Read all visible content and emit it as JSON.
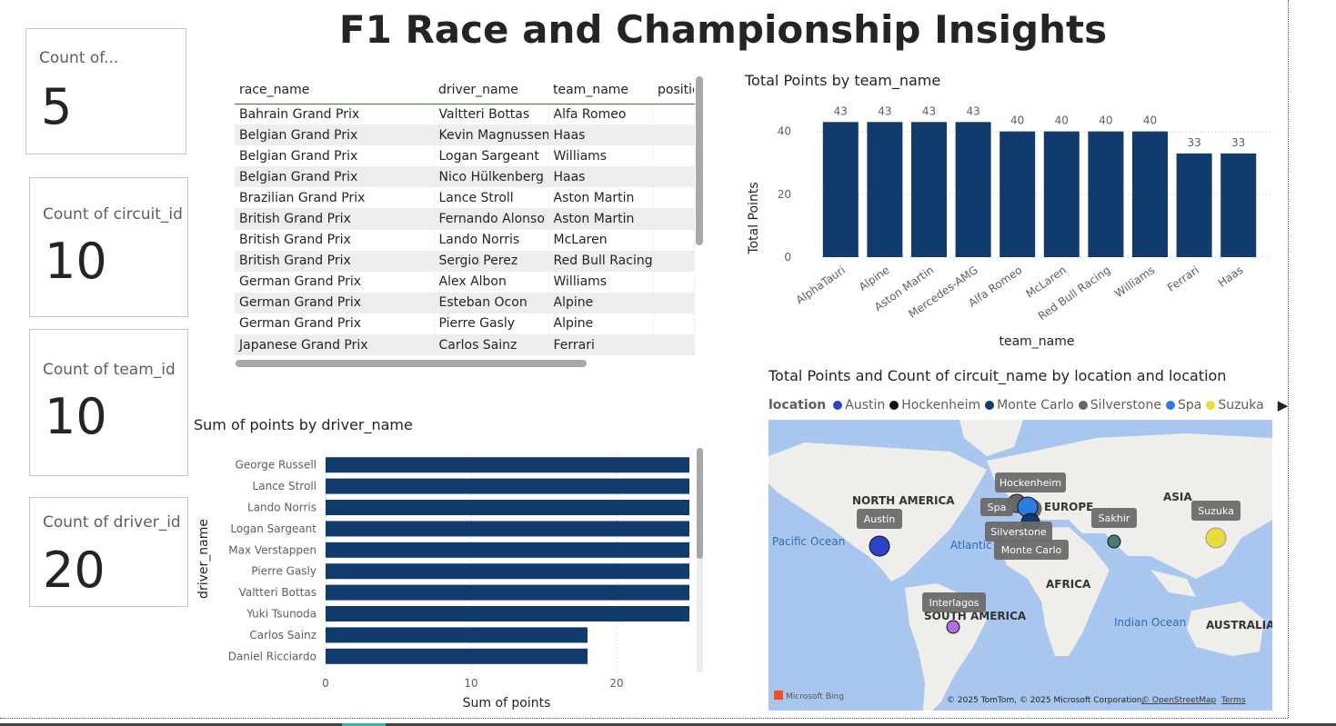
{
  "header": {
    "title": "F1 Race and Championship Insights"
  },
  "cards": [
    {
      "label": "Count of...",
      "value": "5"
    },
    {
      "label": "Count of circuit_id",
      "value": "10"
    },
    {
      "label": "Count of team_id",
      "value": "10"
    },
    {
      "label": "Count of driver_id",
      "value": "20"
    }
  ],
  "table": {
    "columns": [
      "race_name",
      "driver_name",
      "team_name",
      "positic"
    ],
    "rows": [
      [
        "Bahrain Grand Prix",
        "Valtteri Bottas",
        "Alfa Romeo"
      ],
      [
        "Belgian Grand Prix",
        "Kevin Magnussen",
        "Haas"
      ],
      [
        "Belgian Grand Prix",
        "Logan Sargeant",
        "Williams"
      ],
      [
        "Belgian Grand Prix",
        "Nico Hülkenberg",
        "Haas"
      ],
      [
        "Brazilian Grand Prix",
        "Lance Stroll",
        "Aston Martin"
      ],
      [
        "British Grand Prix",
        "Fernando Alonso",
        "Aston Martin"
      ],
      [
        "British Grand Prix",
        "Lando Norris",
        "McLaren"
      ],
      [
        "British Grand Prix",
        "Sergio Perez",
        "Red Bull Racing"
      ],
      [
        "German Grand Prix",
        "Alex Albon",
        "Williams"
      ],
      [
        "German Grand Prix",
        "Esteban Ocon",
        "Alpine"
      ],
      [
        "German Grand Prix",
        "Pierre Gasly",
        "Alpine"
      ],
      [
        "Japanese Grand Prix",
        "Carlos Sainz",
        "Ferrari"
      ]
    ]
  },
  "team_chart": {
    "title": "Total Points by team_name",
    "xlabel": "team_name",
    "ylabel": "Total Points"
  },
  "driver_chart": {
    "title": "Sum of points by driver_name",
    "xlabel": "Sum of points",
    "ylabel": "driver_name"
  },
  "map": {
    "title": "Total Points and Count of circuit_name by location and location",
    "legend_title": "location",
    "legend": [
      {
        "name": "Austin",
        "color": "#2d44c8"
      },
      {
        "name": "Hockenheim",
        "color": "#111111"
      },
      {
        "name": "Monte Carlo",
        "color": "#123a6b"
      },
      {
        "name": "Silverstone",
        "color": "#666666"
      },
      {
        "name": "Spa",
        "color": "#2f7be5"
      },
      {
        "name": "Suzuka",
        "color": "#e8dc3c"
      }
    ],
    "regions": [
      "NORTH AMERICA",
      "EUROPE",
      "ASIA",
      "AFRICA",
      "SOUTH AMERICA",
      "AUSTRALIA"
    ],
    "oceans": [
      "Pacific Ocean",
      "Atlantic Ocean",
      "Indian Ocean"
    ],
    "callouts": [
      "Hockenheim",
      "Spa",
      "Silverstone",
      "Monte Carlo",
      "Austin",
      "Sakhir",
      "Suzuka",
      "Interlagos"
    ],
    "bing": "Microsoft Bing",
    "copyright": "© 2025 TomTom, © 2025 Microsoft Corporation,",
    "osm": "© OpenStreetMap",
    "terms": "Terms"
  },
  "chart_data": [
    {
      "type": "bar",
      "title": "Total Points by team_name",
      "xlabel": "team_name",
      "ylabel": "Total Points",
      "categories": [
        "AlphaTauri",
        "Alpine",
        "Aston Martin",
        "Mercedes-AMG",
        "Alfa Romeo",
        "McLaren",
        "Red Bull Racing",
        "Williams",
        "Ferrari",
        "Haas"
      ],
      "values": [
        43,
        43,
        43,
        43,
        40,
        40,
        40,
        40,
        33,
        33
      ],
      "yticks": [
        0,
        20,
        40
      ],
      "ylim": [
        0,
        48
      ],
      "grid": true,
      "color": "#123b6d"
    },
    {
      "type": "bar",
      "orientation": "horizontal",
      "title": "Sum of points by driver_name",
      "xlabel": "Sum of points",
      "ylabel": "driver_name",
      "categories": [
        "George Russell",
        "Lance Stroll",
        "Lando Norris",
        "Logan Sargeant",
        "Max Verstappen",
        "Pierre Gasly",
        "Valtteri Bottas",
        "Yuki Tsunoda",
        "Carlos Sainz",
        "Daniel Ricciardo"
      ],
      "values": [
        25,
        25,
        25,
        25,
        25,
        25,
        25,
        25,
        18,
        18
      ],
      "xticks": [
        0,
        10,
        20
      ],
      "xlim": [
        0,
        25
      ],
      "grid": true,
      "color": "#123b6d"
    }
  ]
}
